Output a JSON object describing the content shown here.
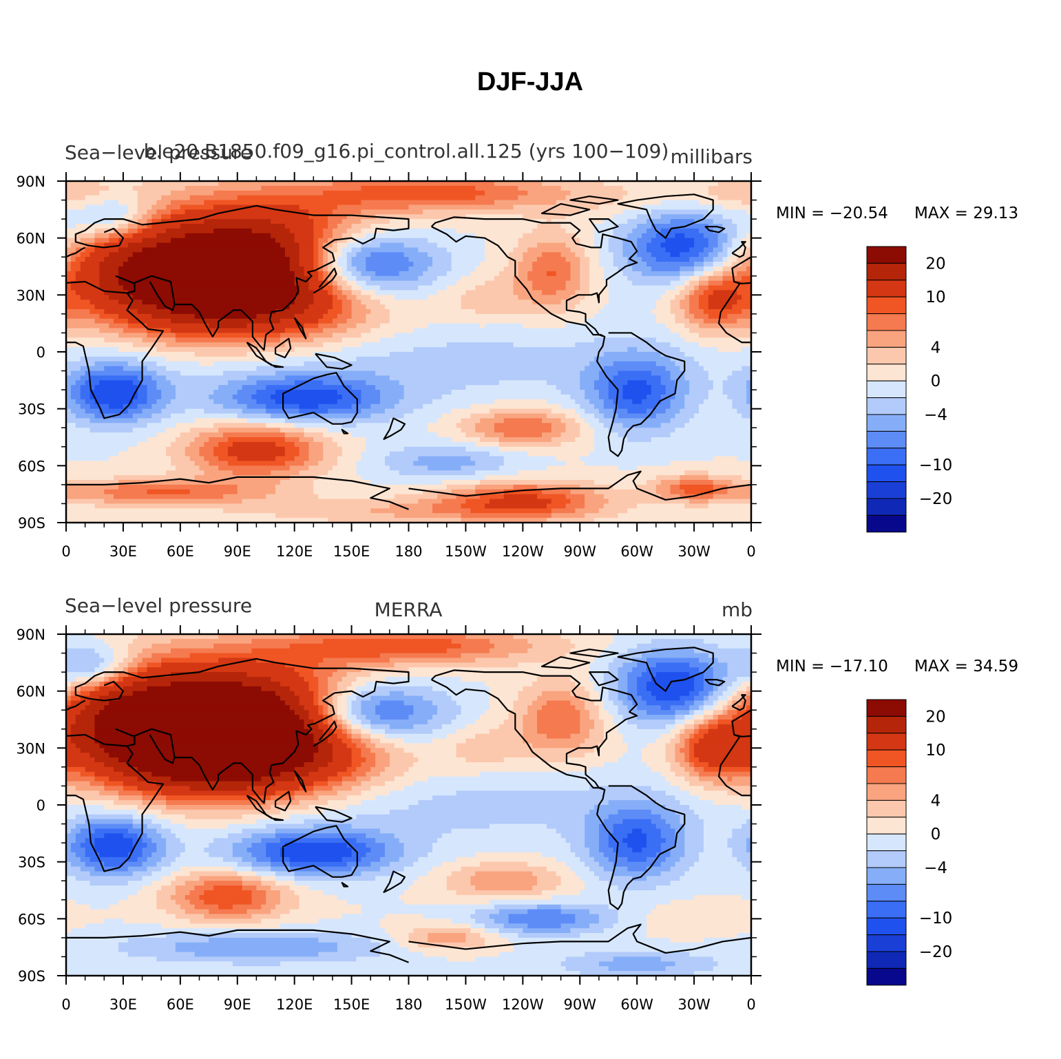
{
  "figure": {
    "title": "DJF-JJA"
  },
  "colors": {
    "contour_levels": [
      -25,
      -20,
      -15,
      -10,
      -8,
      -6,
      -4,
      -2,
      0,
      2,
      4,
      6,
      8,
      10,
      15,
      20,
      25
    ],
    "fills": [
      "#08088c",
      "#0f28b6",
      "#1a3fd6",
      "#1f51ee",
      "#3a6ef5",
      "#5d8cf7",
      "#86aef8",
      "#b2cbfa",
      "#d6e7fd",
      "#fde5d3",
      "#fcc8ad",
      "#f9a47f",
      "#f57a4f",
      "#f05524",
      "#d43713",
      "#b52509",
      "#8c0b03"
    ],
    "land_outline": "#000000"
  },
  "colorbar": {
    "labels": [
      {
        "level": 20,
        "text": "20"
      },
      {
        "level": 10,
        "text": "10"
      },
      {
        "level": 4,
        "text": "4"
      },
      {
        "level": 0,
        "text": "0"
      },
      {
        "level": -4,
        "text": "−4"
      },
      {
        "level": -10,
        "text": "−10"
      },
      {
        "level": -20,
        "text": "−20"
      }
    ]
  },
  "chart_data": [
    {
      "type": "heatmap",
      "title": "",
      "left_title": "Sea−level pressure",
      "center_title": "b.e20.B1850.f09_g16.pi_control.all.125 (yrs 100−109)",
      "units": "millibars",
      "xlabel": "",
      "ylabel": "",
      "x_ticks": [
        "0",
        "30E",
        "60E",
        "90E",
        "120E",
        "150E",
        "180",
        "150W",
        "120W",
        "90W",
        "60W",
        "30W",
        "0"
      ],
      "y_ticks": [
        "90N",
        "60N",
        "30N",
        "0",
        "30S",
        "60S",
        "90S"
      ],
      "xlim": [
        0,
        360
      ],
      "ylim": [
        -90,
        90
      ],
      "min_label": "MIN = −20.54",
      "max_label": "MAX =   29.13",
      "min": -20.54,
      "max": 29.13,
      "field_features": [
        {
          "lon": 100,
          "lat": 45,
          "value": 29,
          "rlon": 45,
          "rlat": 22
        },
        {
          "lon": 75,
          "lat": 32,
          "value": 12,
          "rlon": 38,
          "rlat": 16
        },
        {
          "lon": 30,
          "lat": 45,
          "value": 8,
          "rlon": 28,
          "rlat": 18
        },
        {
          "lon": 195,
          "lat": 84,
          "value": 9,
          "rlon": 45,
          "rlat": 7
        },
        {
          "lon": 255,
          "lat": 42,
          "value": 8,
          "rlon": 14,
          "rlat": 14
        },
        {
          "lon": 340,
          "lat": 28,
          "value": 10,
          "rlon": 14,
          "rlat": 12
        },
        {
          "lon": 220,
          "lat": 28,
          "value": 3,
          "rlon": 16,
          "rlat": 9
        },
        {
          "lon": 300,
          "lat": 80,
          "value": 2,
          "rlon": 40,
          "rlat": 8
        },
        {
          "lon": 0,
          "lat": 84,
          "value": 3,
          "rlon": 22,
          "rlat": 6
        },
        {
          "lon": 150,
          "lat": 46,
          "value": -20.5,
          "rlon": 30,
          "rlat": 13
        },
        {
          "lon": 325,
          "lat": 55,
          "value": -12,
          "rlon": 22,
          "rlat": 14
        },
        {
          "lon": 25,
          "lat": 70,
          "value": -8,
          "rlon": 16,
          "rlat": 9
        },
        {
          "lon": 125,
          "lat": -25,
          "value": -11,
          "rlon": 32,
          "rlat": 9
        },
        {
          "lon": 25,
          "lat": -22,
          "value": -12,
          "rlon": 18,
          "rlat": 11
        },
        {
          "lon": 300,
          "lat": -22,
          "value": -10,
          "rlon": 18,
          "rlat": 14
        },
        {
          "lon": 180,
          "lat": -5,
          "value": -3,
          "rlon": 110,
          "rlat": 14
        },
        {
          "lon": 100,
          "lat": -52,
          "value": 12,
          "rlon": 25,
          "rlat": 10
        },
        {
          "lon": 240,
          "lat": -40,
          "value": 8,
          "rlon": 22,
          "rlat": 7
        },
        {
          "lon": 200,
          "lat": -58,
          "value": -5,
          "rlon": 26,
          "rlat": 7
        },
        {
          "lon": 240,
          "lat": -78,
          "value": 10,
          "rlon": 30,
          "rlat": 7
        },
        {
          "lon": 50,
          "lat": -74,
          "value": 8,
          "rlon": 40,
          "rlat": 5
        },
        {
          "lon": 330,
          "lat": -72,
          "value": 8,
          "rlon": 15,
          "rlat": 5
        },
        {
          "lon": 180,
          "lat": -84,
          "value": 4,
          "rlon": 60,
          "rlat": 5
        }
      ]
    },
    {
      "type": "heatmap",
      "title": "",
      "left_title": "Sea−level pressure",
      "center_title": "MERRA",
      "units": "mb",
      "xlabel": "",
      "ylabel": "",
      "x_ticks": [
        "0",
        "30E",
        "60E",
        "90E",
        "120E",
        "150E",
        "180",
        "150W",
        "120W",
        "90W",
        "60W",
        "30W",
        "0"
      ],
      "y_ticks": [
        "90N",
        "60N",
        "30N",
        "0",
        "30S",
        "60S",
        "90S"
      ],
      "xlim": [
        0,
        360
      ],
      "ylim": [
        -90,
        90
      ],
      "min_label": "MIN = −17.10",
      "max_label": "MAX =   34.59",
      "min": -17.1,
      "max": 34.59,
      "field_features": [
        {
          "lon": 90,
          "lat": 40,
          "value": 34,
          "rlon": 48,
          "rlat": 22
        },
        {
          "lon": 70,
          "lat": 30,
          "value": 13,
          "rlon": 38,
          "rlat": 16
        },
        {
          "lon": 30,
          "lat": 50,
          "value": 9,
          "rlon": 28,
          "rlat": 18
        },
        {
          "lon": 180,
          "lat": 84,
          "value": 9,
          "rlon": 50,
          "rlat": 7
        },
        {
          "lon": 260,
          "lat": 45,
          "value": 8,
          "rlon": 16,
          "rlat": 14
        },
        {
          "lon": 340,
          "lat": 30,
          "value": 11,
          "rlon": 14,
          "rlat": 12
        },
        {
          "lon": 220,
          "lat": 30,
          "value": 3,
          "rlon": 16,
          "rlat": 9
        },
        {
          "lon": 155,
          "lat": 48,
          "value": -17,
          "rlon": 30,
          "rlat": 12
        },
        {
          "lon": 320,
          "lat": 62,
          "value": -13,
          "rlon": 22,
          "rlat": 14
        },
        {
          "lon": 15,
          "lat": 72,
          "value": -9,
          "rlon": 16,
          "rlat": 9
        },
        {
          "lon": 130,
          "lat": -25,
          "value": -12,
          "rlon": 30,
          "rlat": 9
        },
        {
          "lon": 25,
          "lat": -22,
          "value": -12,
          "rlon": 18,
          "rlat": 11
        },
        {
          "lon": 300,
          "lat": -20,
          "value": -10,
          "rlon": 18,
          "rlat": 14
        },
        {
          "lon": 180,
          "lat": 0,
          "value": -3,
          "rlon": 110,
          "rlat": 14
        },
        {
          "lon": 85,
          "lat": -48,
          "value": 10,
          "rlon": 22,
          "rlat": 9
        },
        {
          "lon": 230,
          "lat": -40,
          "value": 6,
          "rlon": 22,
          "rlat": 7
        },
        {
          "lon": 250,
          "lat": -60,
          "value": -8,
          "rlon": 25,
          "rlat": 6
        },
        {
          "lon": 200,
          "lat": -70,
          "value": 6,
          "rlon": 18,
          "rlat": 5
        },
        {
          "lon": 100,
          "lat": -75,
          "value": -6,
          "rlon": 50,
          "rlat": 6
        },
        {
          "lon": 330,
          "lat": -60,
          "value": 2,
          "rlon": 20,
          "rlat": 6
        },
        {
          "lon": 300,
          "lat": -84,
          "value": -5,
          "rlon": 30,
          "rlat": 5
        }
      ]
    }
  ]
}
